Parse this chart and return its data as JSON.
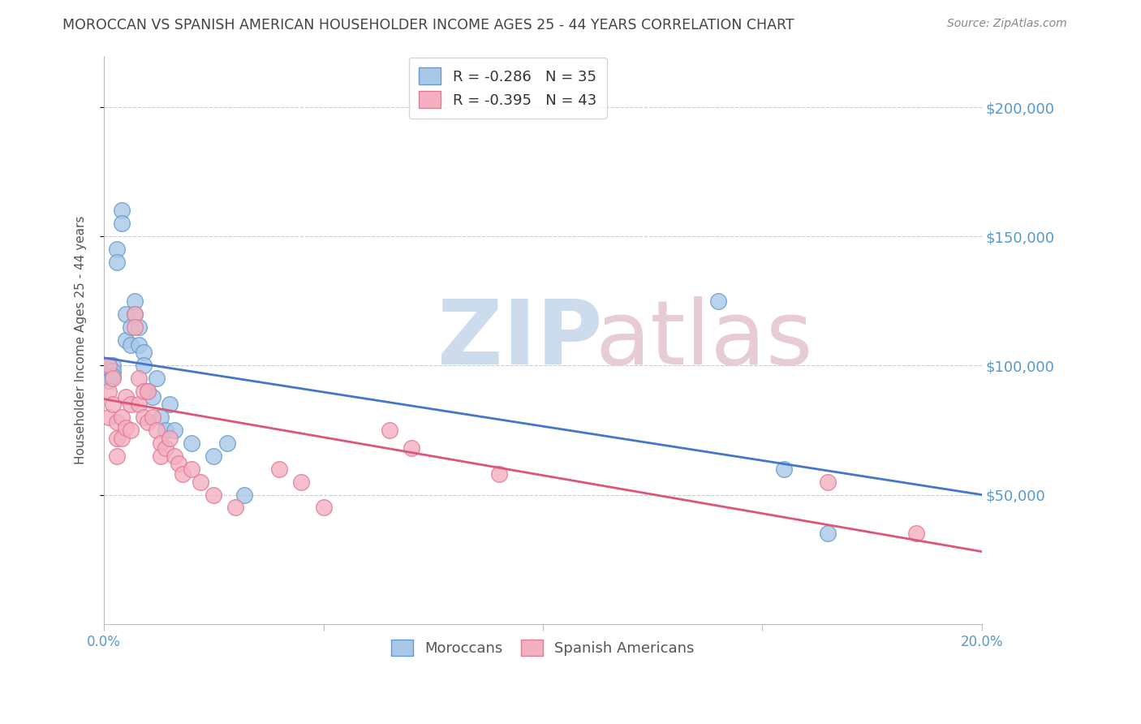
{
  "title": "MOROCCAN VS SPANISH AMERICAN HOUSEHOLDER INCOME AGES 25 - 44 YEARS CORRELATION CHART",
  "source": "Source: ZipAtlas.com",
  "ylabel": "Householder Income Ages 25 - 44 years",
  "moroccan_R": -0.286,
  "moroccan_N": 35,
  "spanish_R": -0.395,
  "spanish_N": 43,
  "moroccan_color": "#a8c8e8",
  "moroccan_edge": "#6699cc",
  "spanish_color": "#f4b0c0",
  "spanish_edge": "#e07898",
  "moroccan_line_color": "#4477cc",
  "spanish_line_color": "#dd5577",
  "background_color": "#ffffff",
  "grid_color": "#cccccc",
  "title_color": "#444444",
  "axis_color": "#5599cc",
  "xlim": [
    0.0,
    0.2
  ],
  "ylim": [
    0,
    220000
  ],
  "yticks": [
    50000,
    100000,
    150000,
    200000
  ],
  "ytick_labels": [
    "$50,000",
    "$100,000",
    "$150,000",
    "$200,000"
  ],
  "xticks": [
    0.0,
    0.05,
    0.1,
    0.15,
    0.2
  ],
  "xtick_labels": [
    "0.0%",
    "",
    "",
    "",
    "20.0%"
  ],
  "moroccan_line_x0": 0.0,
  "moroccan_line_y0": 103000,
  "moroccan_line_x1": 0.2,
  "moroccan_line_y1": 50000,
  "spanish_line_x0": 0.0,
  "spanish_line_y0": 87000,
  "spanish_line_x1": 0.2,
  "spanish_line_y1": 28000,
  "moroccan_x": [
    0.001,
    0.001,
    0.001,
    0.001,
    0.002,
    0.002,
    0.002,
    0.003,
    0.003,
    0.004,
    0.004,
    0.005,
    0.005,
    0.006,
    0.006,
    0.007,
    0.007,
    0.008,
    0.008,
    0.009,
    0.009,
    0.01,
    0.011,
    0.012,
    0.013,
    0.014,
    0.015,
    0.016,
    0.02,
    0.025,
    0.028,
    0.032,
    0.14,
    0.155,
    0.165
  ],
  "moroccan_y": [
    100000,
    98000,
    96000,
    94000,
    100000,
    98000,
    96000,
    145000,
    140000,
    160000,
    155000,
    120000,
    110000,
    115000,
    108000,
    125000,
    120000,
    115000,
    108000,
    105000,
    100000,
    90000,
    88000,
    95000,
    80000,
    75000,
    85000,
    75000,
    70000,
    65000,
    70000,
    50000,
    125000,
    60000,
    35000
  ],
  "spanish_x": [
    0.001,
    0.001,
    0.001,
    0.002,
    0.002,
    0.003,
    0.003,
    0.003,
    0.004,
    0.004,
    0.005,
    0.005,
    0.006,
    0.006,
    0.007,
    0.007,
    0.008,
    0.008,
    0.009,
    0.009,
    0.01,
    0.01,
    0.011,
    0.012,
    0.013,
    0.013,
    0.014,
    0.015,
    0.016,
    0.017,
    0.018,
    0.02,
    0.022,
    0.025,
    0.03,
    0.04,
    0.045,
    0.05,
    0.065,
    0.07,
    0.09,
    0.165,
    0.185
  ],
  "spanish_y": [
    100000,
    90000,
    80000,
    95000,
    85000,
    78000,
    72000,
    65000,
    80000,
    72000,
    88000,
    76000,
    85000,
    75000,
    120000,
    115000,
    95000,
    85000,
    90000,
    80000,
    90000,
    78000,
    80000,
    75000,
    70000,
    65000,
    68000,
    72000,
    65000,
    62000,
    58000,
    60000,
    55000,
    50000,
    45000,
    60000,
    55000,
    45000,
    75000,
    68000,
    58000,
    55000,
    35000
  ]
}
